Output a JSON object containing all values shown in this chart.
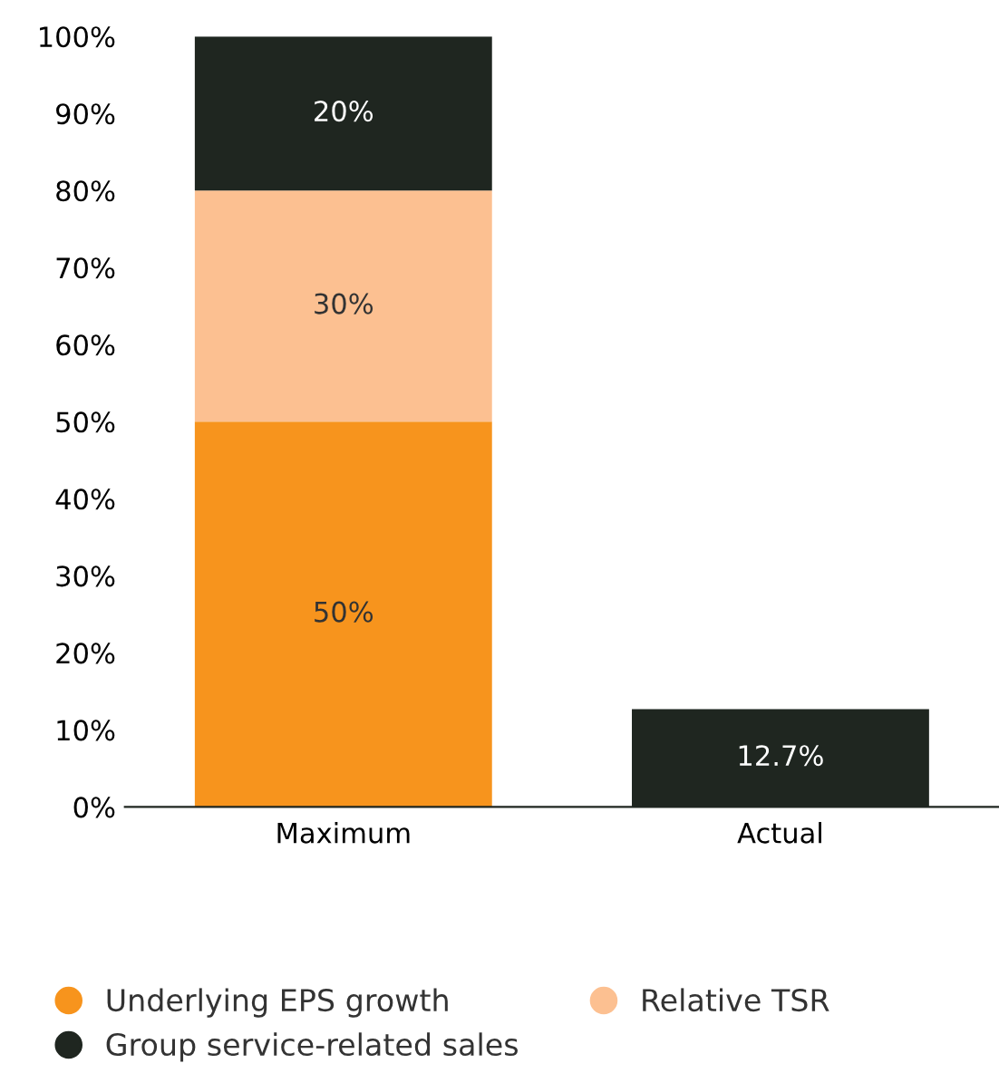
{
  "chart_data": {
    "type": "bar",
    "stacked": true,
    "categories": [
      "Maximum",
      "Actual"
    ],
    "series": [
      {
        "name": "Underlying EPS growth",
        "color": "#f7941d",
        "values": [
          50,
          null
        ],
        "value_labels": [
          "50%",
          null
        ]
      },
      {
        "name": "Relative TSR",
        "color": "#fcc091",
        "values": [
          30,
          null
        ],
        "value_labels": [
          "30%",
          null
        ]
      },
      {
        "name": "Group service-related sales",
        "color": "#1f2620",
        "values": [
          20,
          12.7
        ],
        "value_labels": [
          "20%",
          "12.7%"
        ]
      }
    ],
    "ylim": [
      0,
      100
    ],
    "yticks": [
      {
        "value": 0,
        "label": "0%"
      },
      {
        "value": 10,
        "label": "10%"
      },
      {
        "value": 20,
        "label": "20%"
      },
      {
        "value": 30,
        "label": "30%"
      },
      {
        "value": 40,
        "label": "40%"
      },
      {
        "value": 50,
        "label": "50%"
      },
      {
        "value": 60,
        "label": "60%"
      },
      {
        "value": 70,
        "label": "70%"
      },
      {
        "value": 80,
        "label": "80%"
      },
      {
        "value": 90,
        "label": "90%"
      },
      {
        "value": 100,
        "label": "100%"
      }
    ],
    "grid": false,
    "legend": "bottom"
  }
}
